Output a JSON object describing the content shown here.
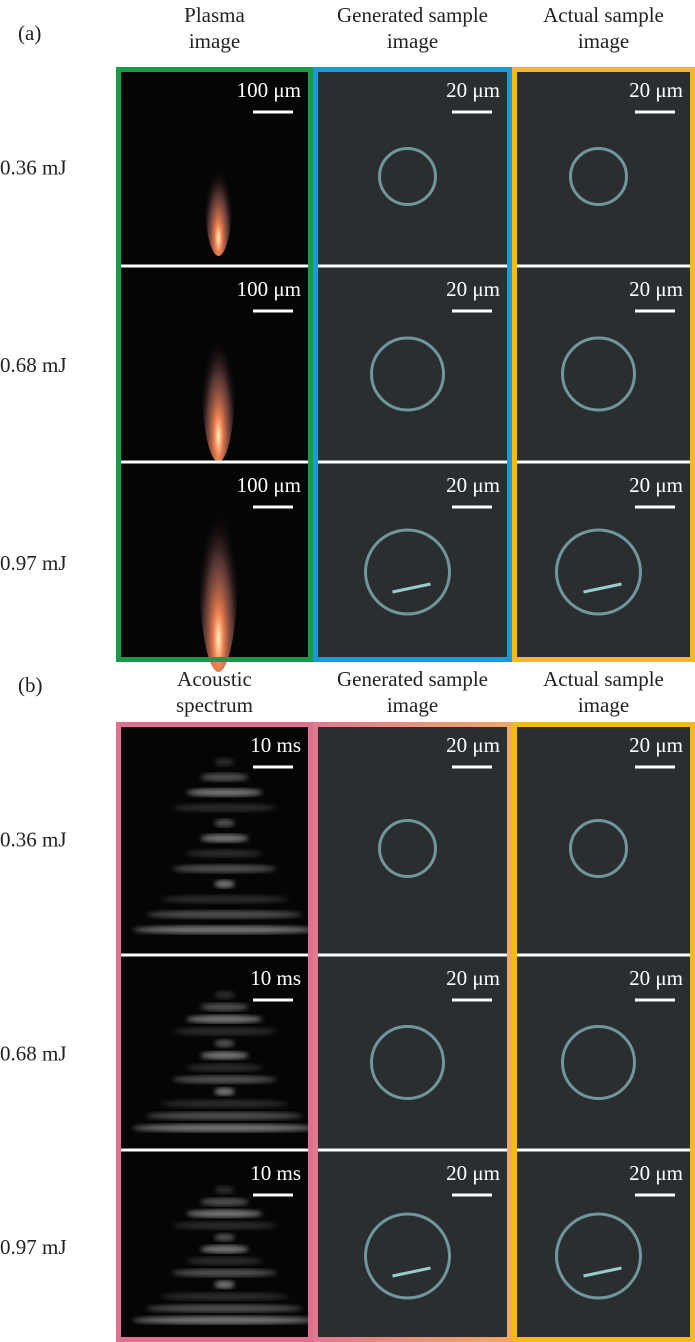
{
  "figure": {
    "panels": [
      {
        "label": "(a)",
        "columns": [
          {
            "header": [
              "Plasma",
              "image"
            ],
            "scale": "100 μm"
          },
          {
            "header": [
              "Generated sample",
              "image"
            ],
            "scale": "20 μm"
          },
          {
            "header": [
              "Actual sample",
              "image"
            ],
            "scale": "20 μm"
          }
        ],
        "rows": [
          "0.36 mJ",
          "0.68 mJ",
          "0.97 mJ"
        ]
      },
      {
        "label": "(b)",
        "columns": [
          {
            "header": [
              "Acoustic",
              "spectrum"
            ],
            "scale": "10 ms"
          },
          {
            "header": [
              "Generated sample",
              "image"
            ],
            "scale": "20 μm"
          },
          {
            "header": [
              "Actual sample",
              "image"
            ],
            "scale": "20 μm"
          }
        ],
        "rows": [
          "0.36 mJ",
          "0.68 mJ",
          "0.97 mJ"
        ]
      }
    ]
  }
}
